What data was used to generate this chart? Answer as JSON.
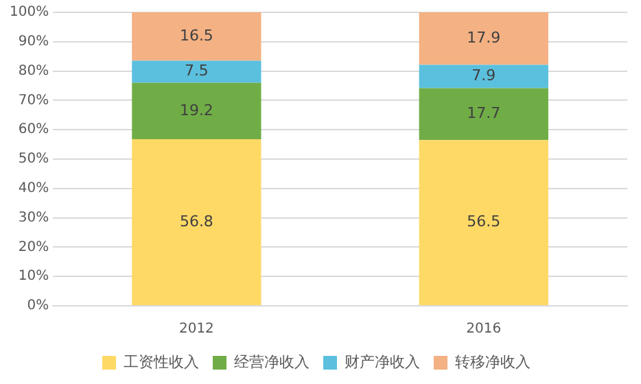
{
  "chart_data": {
    "type": "bar",
    "stacked": true,
    "categories": [
      "2012",
      "2016"
    ],
    "series": [
      {
        "name": "工资性收入",
        "color": "#ffd966",
        "values": [
          56.8,
          56.5
        ]
      },
      {
        "name": "经营净收入",
        "color": "#70ad47",
        "values": [
          19.2,
          17.7
        ]
      },
      {
        "name": "财产净收入",
        "color": "#5bc0de",
        "values": [
          7.5,
          7.9
        ]
      },
      {
        "name": "转移净收入",
        "color": "#f4b183",
        "values": [
          16.5,
          17.9
        ]
      }
    ],
    "ylim": [
      0,
      100
    ],
    "yticks": [
      {
        "value": 0,
        "label": "0%"
      },
      {
        "value": 10,
        "label": "10%"
      },
      {
        "value": 20,
        "label": "20%"
      },
      {
        "value": 30,
        "label": "30%"
      },
      {
        "value": 40,
        "label": "40%"
      },
      {
        "value": 50,
        "label": "50%"
      },
      {
        "value": 60,
        "label": "60%"
      },
      {
        "value": 70,
        "label": "70%"
      },
      {
        "value": 80,
        "label": "80%"
      },
      {
        "value": 90,
        "label": "90%"
      },
      {
        "value": 100,
        "label": "100%"
      }
    ],
    "grid": "y",
    "legend": "bottom",
    "data_labels": true
  }
}
